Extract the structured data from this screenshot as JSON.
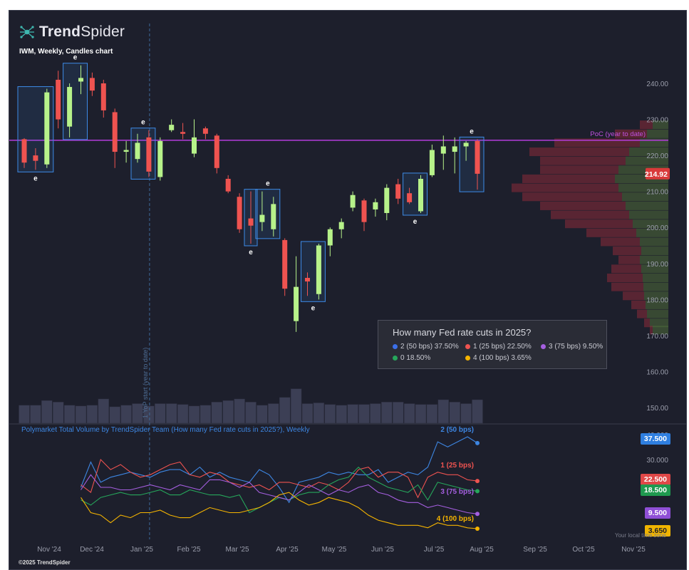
{
  "brand": {
    "name_bold": "Trend",
    "name_light": "Spider"
  },
  "symbol_title": "IWM, Weekly, Candles chart",
  "poc_label": "PoC (year to date)",
  "ytd_label": "1 YoP start (year to date)",
  "earnings_marker": "e",
  "price_tag": "214.92",
  "indicator_title": "Polymarket Total Volume by TrendSpider Team (How many Fed rate cuts in 2025?), Weekly",
  "legend": {
    "title": "How many Fed rate cuts in 2025?",
    "items": [
      {
        "label": "2 (50 bps) 37.50%",
        "color": "#3b6fe8"
      },
      {
        "label": "1 (25 bps) 22.50%",
        "color": "#ef5350"
      },
      {
        "label": "3 (75 bps) 9.50%",
        "color": "#a55fe0"
      },
      {
        "label": "0 18.50%",
        "color": "#26a65b"
      },
      {
        "label": "4 (100 bps) 3.65%",
        "color": "#f5b400"
      }
    ]
  },
  "line_labels": [
    {
      "text": "2 (50 bps)",
      "color": "#3d86e2"
    },
    {
      "text": "1 (25 bps)",
      "color": "#ef5350"
    },
    {
      "text": "3 (75 bps)",
      "color": "#a55fe0"
    },
    {
      "text": "4 (100 bps)",
      "color": "#f5b400"
    }
  ],
  "value_tags": [
    {
      "text": "37.500",
      "color": "#2f7fe0"
    },
    {
      "text": "22.500",
      "color": "#e04848"
    },
    {
      "text": "18.500",
      "color": "#1f9a4f"
    },
    {
      "text": "9.500",
      "color": "#8f4fd6"
    },
    {
      "text": "3.650",
      "color": "#f0b400"
    }
  ],
  "timezone_label": "Your local time zone",
  "copyright": "©2025 TrendSpider",
  "colors": {
    "up": "#b7f28a",
    "down": "#ef5350",
    "poc": "#b43cdc",
    "background": "#1d1f2c",
    "grid_text": "#9a9dab",
    "earnings_box": "#3d8be8"
  },
  "chart_data": [
    {
      "type": "candlestick",
      "title": "IWM, Weekly, Candles chart",
      "x_ticks": [
        "Nov '24",
        "Dec '24",
        "Jan '25",
        "Feb '25",
        "Mar '25",
        "Apr '25",
        "May '25",
        "Jun '25",
        "Jul '25",
        "Aug '25",
        "Sep '25",
        "Oct '25",
        "Nov '25"
      ],
      "y_ticks": [
        150,
        160,
        170,
        180,
        190,
        200,
        210,
        220,
        230,
        240
      ],
      "ylim": [
        146,
        252
      ],
      "poc": 224.2,
      "last_price": 214.92,
      "candles": [
        {
          "o": 224.5,
          "h": 224.8,
          "l": 216.5,
          "c": 218.0
        },
        {
          "o": 220.0,
          "h": 222.0,
          "l": 216.0,
          "c": 218.5
        },
        {
          "o": 217.5,
          "h": 238.5,
          "l": 216.5,
          "c": 237.5
        },
        {
          "o": 241.0,
          "h": 243.5,
          "l": 227.5,
          "c": 230.0
        },
        {
          "o": 228.0,
          "h": 240.0,
          "l": 225.0,
          "c": 239.0
        },
        {
          "o": 240.5,
          "h": 245.0,
          "l": 237.0,
          "c": 241.5
        },
        {
          "o": 241.5,
          "h": 243.0,
          "l": 236.5,
          "c": 238.0
        },
        {
          "o": 240.0,
          "h": 241.0,
          "l": 230.5,
          "c": 232.5
        },
        {
          "o": 232.0,
          "h": 233.0,
          "l": 216.5,
          "c": 221.0
        },
        {
          "o": 221.0,
          "h": 224.0,
          "l": 218.0,
          "c": 221.5
        },
        {
          "o": 219.0,
          "h": 226.0,
          "l": 218.0,
          "c": 223.5
        },
        {
          "o": 225.0,
          "h": 227.0,
          "l": 214.0,
          "c": 215.5
        },
        {
          "o": 214.0,
          "h": 225.0,
          "l": 213.0,
          "c": 224.0
        },
        {
          "o": 227.0,
          "h": 230.0,
          "l": 226.5,
          "c": 228.5
        },
        {
          "o": 226.5,
          "h": 229.0,
          "l": 224.5,
          "c": 226.0
        },
        {
          "o": 220.5,
          "h": 230.0,
          "l": 219.5,
          "c": 225.0
        },
        {
          "o": 227.5,
          "h": 228.0,
          "l": 224.5,
          "c": 226.0
        },
        {
          "o": 225.5,
          "h": 226.0,
          "l": 215.0,
          "c": 216.5
        },
        {
          "o": 213.5,
          "h": 214.5,
          "l": 209.5,
          "c": 210.0
        },
        {
          "o": 208.5,
          "h": 209.5,
          "l": 198.5,
          "c": 199.5
        },
        {
          "o": 202.5,
          "h": 210.0,
          "l": 195.5,
          "c": 200.5
        },
        {
          "o": 201.5,
          "h": 210.0,
          "l": 199.0,
          "c": 203.5
        },
        {
          "o": 199.5,
          "h": 208.5,
          "l": 197.5,
          "c": 206.5
        },
        {
          "o": 196.5,
          "h": 197.0,
          "l": 181.0,
          "c": 183.0
        },
        {
          "o": 174.0,
          "h": 192.0,
          "l": 171.0,
          "c": 183.5
        },
        {
          "o": 186.0,
          "h": 187.5,
          "l": 181.0,
          "c": 185.0
        },
        {
          "o": 181.5,
          "h": 195.5,
          "l": 180.0,
          "c": 195.0
        },
        {
          "o": 195.0,
          "h": 200.0,
          "l": 192.0,
          "c": 199.5
        },
        {
          "o": 199.5,
          "h": 202.5,
          "l": 197.0,
          "c": 201.5
        },
        {
          "o": 205.5,
          "h": 210.0,
          "l": 204.5,
          "c": 209.0
        },
        {
          "o": 207.5,
          "h": 208.0,
          "l": 199.0,
          "c": 201.5
        },
        {
          "o": 205.0,
          "h": 208.0,
          "l": 203.0,
          "c": 207.0
        },
        {
          "o": 204.0,
          "h": 212.0,
          "l": 202.0,
          "c": 211.0
        },
        {
          "o": 212.0,
          "h": 213.5,
          "l": 206.5,
          "c": 208.0
        },
        {
          "o": 209.5,
          "h": 211.0,
          "l": 206.5,
          "c": 207.0
        },
        {
          "o": 204.5,
          "h": 214.5,
          "l": 204.0,
          "c": 213.5
        },
        {
          "o": 214.5,
          "h": 223.0,
          "l": 214.0,
          "c": 221.5
        },
        {
          "o": 220.5,
          "h": 225.5,
          "l": 216.0,
          "c": 222.5
        },
        {
          "o": 221.0,
          "h": 225.0,
          "l": 215.0,
          "c": 222.5
        },
        {
          "o": 222.5,
          "h": 224.0,
          "l": 218.5,
          "c": 223.5
        },
        {
          "o": 224.0,
          "h": 224.5,
          "l": 210.5,
          "c": 214.9
        }
      ],
      "volume": [
        23,
        23,
        29,
        27,
        23,
        22,
        23,
        31,
        21,
        23,
        25,
        22,
        25,
        25,
        24,
        22,
        23,
        27,
        29,
        31,
        27,
        23,
        25,
        33,
        44,
        25,
        26,
        24,
        23,
        24,
        24,
        25,
        27,
        27,
        25,
        24,
        24,
        30,
        27,
        25,
        30
      ],
      "earnings_boxes": [
        [
          0,
          2,
          "below"
        ],
        [
          4,
          5,
          "above"
        ],
        [
          10,
          11,
          "above"
        ],
        [
          20,
          20,
          "below"
        ],
        [
          21,
          22,
          "above"
        ],
        [
          25,
          26,
          "below"
        ],
        [
          34,
          35,
          "below"
        ],
        [
          39,
          40,
          "above"
        ]
      ],
      "volume_profile": [
        {
          "price": 228.5,
          "up": 22,
          "down": 18
        },
        {
          "price": 226.0,
          "up": 30,
          "down": 45
        },
        {
          "price": 223.5,
          "up": 40,
          "down": 120
        },
        {
          "price": 221.0,
          "up": 55,
          "down": 140
        },
        {
          "price": 218.5,
          "up": 60,
          "down": 120
        },
        {
          "price": 216.0,
          "up": 70,
          "down": 110
        },
        {
          "price": 213.5,
          "up": 75,
          "down": 130
        },
        {
          "price": 211.0,
          "up": 70,
          "down": 150
        },
        {
          "price": 208.5,
          "up": 65,
          "down": 140
        },
        {
          "price": 206.0,
          "up": 60,
          "down": 120
        },
        {
          "price": 203.5,
          "up": 55,
          "down": 110
        },
        {
          "price": 201.0,
          "up": 50,
          "down": 95
        },
        {
          "price": 198.5,
          "up": 45,
          "down": 70
        },
        {
          "price": 196.0,
          "up": 40,
          "down": 55
        },
        {
          "price": 193.5,
          "up": 38,
          "down": 40
        },
        {
          "price": 191.0,
          "up": 40,
          "down": 30
        },
        {
          "price": 188.5,
          "up": 38,
          "down": 42
        },
        {
          "price": 186.0,
          "up": 36,
          "down": 50
        },
        {
          "price": 183.5,
          "up": 35,
          "down": 45
        },
        {
          "price": 181.0,
          "up": 34,
          "down": 30
        },
        {
          "price": 178.5,
          "up": 32,
          "down": 20
        },
        {
          "price": 176.0,
          "up": 30,
          "down": 14
        },
        {
          "price": 173.5,
          "up": 26,
          "down": 8
        },
        {
          "price": 171.5,
          "up": 22,
          "down": 4
        }
      ]
    },
    {
      "type": "line",
      "title": "Polymarket Total Volume by TrendSpider Team (How many Fed rate cuts in 2025?), Weekly",
      "y_ticks": [
        30,
        40
      ],
      "ylim": [
        0,
        41
      ],
      "series": [
        {
          "name": "2 (50 bps)",
          "color": "#3d86e2",
          "values": [
            20,
            30,
            22,
            24,
            25,
            26,
            25,
            24,
            26,
            27,
            27,
            25,
            28,
            24,
            26,
            24,
            23,
            22,
            27,
            25,
            20,
            14,
            22,
            23,
            24,
            26,
            25,
            26,
            25,
            25,
            27,
            22,
            24,
            26,
            25,
            28,
            38,
            36,
            38,
            40,
            37.5
          ]
        },
        {
          "name": "1 (25 bps)",
          "color": "#ef5350",
          "values": [
            21,
            18,
            31,
            27,
            29,
            26,
            24,
            25,
            27,
            29,
            30,
            25,
            24,
            26,
            25,
            22,
            21,
            20,
            21,
            19,
            22,
            22,
            21,
            20,
            22,
            21,
            19,
            22,
            27,
            28,
            24,
            26,
            26,
            24,
            16,
            24,
            26,
            25,
            25,
            23,
            22.5
          ]
        },
        {
          "name": "0",
          "color": "#26a65b",
          "values": [
            15,
            13,
            16,
            17,
            18,
            17,
            17,
            18,
            19,
            17,
            17,
            19,
            18,
            17,
            17,
            16,
            17,
            10,
            12,
            14,
            16,
            15,
            17,
            18,
            18,
            21,
            23,
            24,
            28,
            24,
            22,
            20,
            19,
            18,
            21,
            15,
            22,
            21,
            20,
            19,
            18.5
          ]
        },
        {
          "name": "3 (75 bps)",
          "color": "#a55fe0",
          "values": [
            19,
            25,
            20,
            20,
            19,
            19,
            20,
            21,
            20,
            19,
            21,
            20,
            19,
            23,
            23,
            22,
            20,
            22,
            18,
            17,
            16,
            15,
            18,
            21,
            19,
            17,
            19,
            18,
            20,
            21,
            18,
            17,
            15,
            14,
            14,
            12,
            13,
            12,
            11,
            10,
            9.5
          ]
        },
        {
          "name": "4 (100 bps)",
          "color": "#f5b400",
          "values": [
            16,
            10,
            9,
            6,
            9,
            8,
            10,
            10,
            11,
            9,
            8,
            8,
            10,
            12,
            11,
            10,
            10,
            11,
            12,
            14,
            17,
            18,
            15,
            13,
            14,
            16,
            15,
            14,
            12,
            9,
            7,
            6,
            5,
            5,
            5,
            4,
            6,
            5,
            5,
            4,
            3.65
          ]
        }
      ]
    }
  ]
}
